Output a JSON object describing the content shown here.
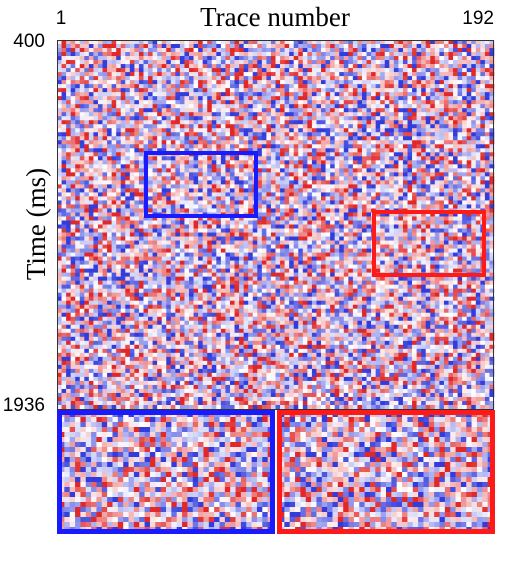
{
  "chart_data": {
    "type": "seismic",
    "title": "Trace number",
    "y_label": "Time (ms)",
    "xlim": [
      1,
      192
    ],
    "xticks": [
      1,
      192
    ],
    "ylim": [
      400,
      1936
    ],
    "yticks": [
      400,
      1936
    ]
  }
}
